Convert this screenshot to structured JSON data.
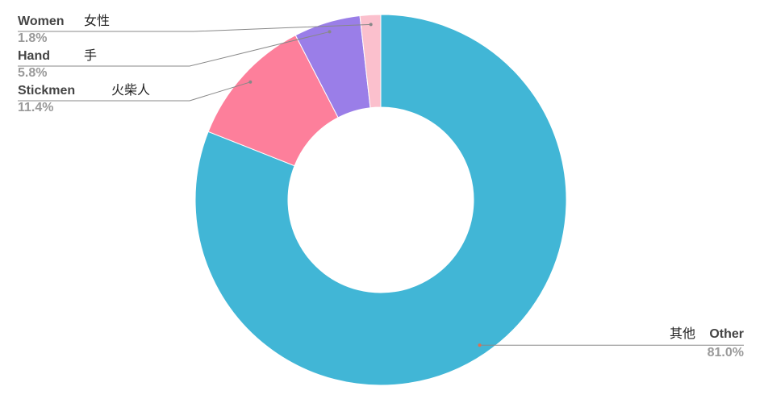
{
  "chart_data": {
    "type": "donut",
    "categories": [
      "Other",
      "Stickmen",
      "Hand",
      "Women"
    ],
    "categories_zh": [
      "其他",
      "火柴人",
      "手",
      "女性"
    ],
    "values": [
      81.0,
      11.4,
      5.8,
      1.8
    ],
    "value_labels": [
      "81.0%",
      "11.4%",
      "5.8%",
      "1.8%"
    ],
    "colors": [
      "#41b6d6",
      "#fd7f9b",
      "#9a7ee8",
      "#fbc0cd"
    ]
  }
}
